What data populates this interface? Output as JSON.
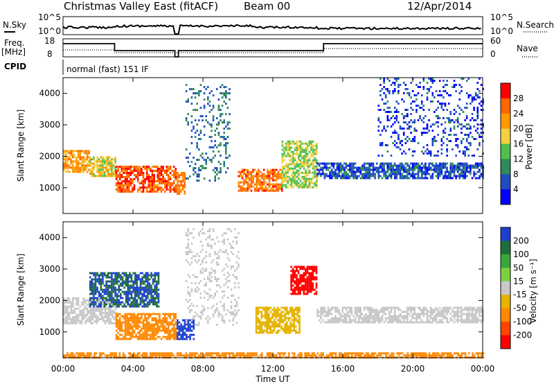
{
  "header": {
    "title": "Christmas Valley East (fitACF)",
    "beam": "Beam 00",
    "date": "12/Apr/2014"
  },
  "panels": {
    "nsky_label": "N.Sky",
    "nsearch_label": "N.Search",
    "nsky_ticks": [
      "10^5",
      "10^0"
    ],
    "nsearch_ticks": [
      "10^5",
      "10^0"
    ],
    "freq_label": "Freq.",
    "freq_unit": "[MHz]",
    "freq_ticks": [
      "18",
      "8"
    ],
    "nave_label": "Nave",
    "nave_ticks": [
      "60",
      "0"
    ],
    "cpid_label": "CPID",
    "cpid_value": "normal (fast) 151 IF"
  },
  "axes": {
    "x_label": "Time UT",
    "x_ticks": [
      "00:00",
      "04:00",
      "08:00",
      "12:00",
      "16:00",
      "20:00",
      "00:00"
    ],
    "y_label": "Slant Range [km]",
    "y_ticks": [
      "1000",
      "2000",
      "3000",
      "4000"
    ]
  },
  "colors": {
    "power_scale": [
      "#0000ff",
      "#1f4fbf",
      "#2e8b57",
      "#4fbf4f",
      "#f4d03f",
      "#ff9900",
      "#ff6600",
      "#ff0000"
    ],
    "velocity_scale": [
      "#1c3fd0",
      "#1e6e3a",
      "#3aa63a",
      "#7cd23c",
      "#c8c8c8",
      "#e4b400",
      "#ff8800",
      "#ff4400",
      "#ff0000"
    ]
  },
  "chart_data": [
    {
      "type": "heatmap",
      "title": "",
      "xlabel": "Time UT",
      "ylabel": "Slant Range [km]",
      "xlim": [
        0,
        24
      ],
      "ylim": [
        180,
        4500
      ],
      "colorbar_label": "Power [dB]",
      "colorbar_ticks": [
        "4",
        "8",
        "12",
        "16",
        "20",
        "24",
        "28"
      ],
      "bands": [
        {
          "t0": 0.0,
          "t1": 1.5,
          "r0": 1500,
          "r1": 2200,
          "level": 22
        },
        {
          "t0": 1.5,
          "t1": 3.0,
          "r0": 1350,
          "r1": 2000,
          "level": 18
        },
        {
          "t0": 3.0,
          "t1": 6.5,
          "r0": 900,
          "r1": 1700,
          "level": 27
        },
        {
          "t0": 6.5,
          "t1": 7.0,
          "r0": 800,
          "r1": 1500,
          "level": 24
        },
        {
          "t0": 7.0,
          "t1": 9.5,
          "r0": 1200,
          "r1": 4300,
          "level": 8
        },
        {
          "t0": 10.0,
          "t1": 12.5,
          "r0": 900,
          "r1": 1600,
          "level": 25
        },
        {
          "t0": 12.5,
          "t1": 14.5,
          "r0": 1000,
          "r1": 2500,
          "level": 16
        },
        {
          "t0": 14.5,
          "t1": 24.0,
          "r0": 1300,
          "r1": 1800,
          "level": 6
        },
        {
          "t0": 18.0,
          "t1": 24.0,
          "r0": 2000,
          "r1": 4500,
          "level": 5
        }
      ]
    },
    {
      "type": "heatmap",
      "title": "",
      "xlabel": "Time UT",
      "ylabel": "Slant Range [km]",
      "xlim": [
        0,
        24
      ],
      "ylim": [
        180,
        4500
      ],
      "colorbar_label": "Velocity [m s⁻¹]",
      "colorbar_ticks": [
        "200",
        "100",
        "50",
        "15",
        "-15",
        "-50",
        "-100",
        "-200"
      ],
      "bands": [
        {
          "t0": 0.0,
          "t1": 3.0,
          "r0": 1300,
          "r1": 2100,
          "level": 0
        },
        {
          "t0": 1.5,
          "t1": 5.5,
          "r0": 1800,
          "r1": 2900,
          "level": 150
        },
        {
          "t0": 3.0,
          "t1": 6.5,
          "r0": 800,
          "r1": 1600,
          "level": -60
        },
        {
          "t0": 6.5,
          "t1": 7.5,
          "r0": 800,
          "r1": 1400,
          "level": 200
        },
        {
          "t0": 7.0,
          "t1": 10.0,
          "r0": 1200,
          "r1": 4300,
          "level": 0
        },
        {
          "t0": 11.0,
          "t1": 13.5,
          "r0": 1000,
          "r1": 1800,
          "level": -40
        },
        {
          "t0": 13.0,
          "t1": 14.5,
          "r0": 2200,
          "r1": 3100,
          "level": -200
        },
        {
          "t0": 14.5,
          "t1": 24.0,
          "r0": 1300,
          "r1": 1800,
          "level": 0
        },
        {
          "t0": 0.0,
          "t1": 24.0,
          "r0": 180,
          "r1": 350,
          "level": -60
        }
      ]
    }
  ]
}
